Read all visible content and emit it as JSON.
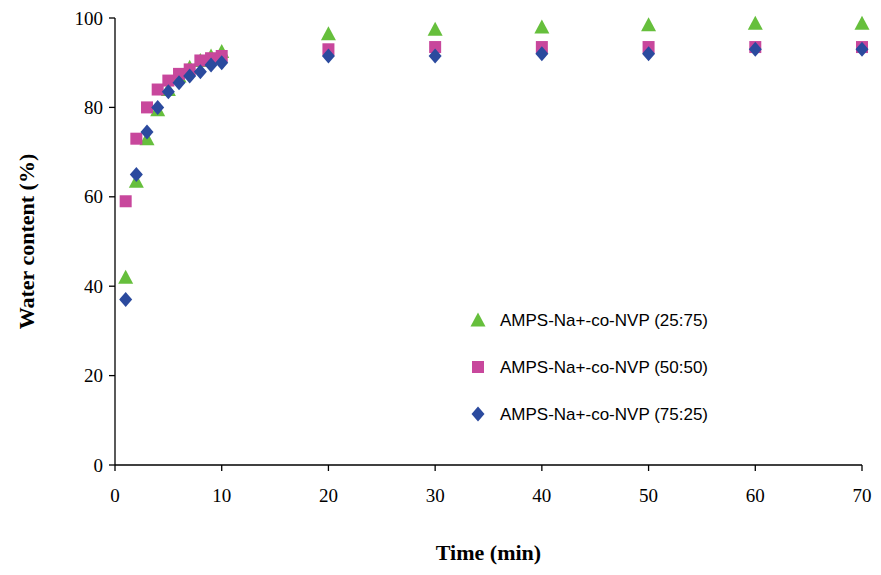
{
  "chart_data": {
    "type": "scatter",
    "x_label": "Time (min)",
    "y_label": "Water content (%)",
    "x": [
      1,
      2,
      3,
      4,
      5,
      6,
      7,
      8,
      9,
      10,
      20,
      30,
      40,
      50,
      60,
      70
    ],
    "series": [
      {
        "name": "AMPS-Na+-co-NVP (25:75)",
        "color": "#66bf3c",
        "marker": "triangle",
        "values": [
          42,
          63.5,
          73,
          79.5,
          84,
          87,
          89,
          90.5,
          91.5,
          92.5,
          96.5,
          97.5,
          98,
          98.5,
          98.8,
          98.8
        ]
      },
      {
        "name": "AMPS-Na+-co-NVP (50:50)",
        "color": "#c8479c",
        "marker": "square",
        "values": [
          59,
          73,
          80,
          84,
          86,
          87.5,
          88.5,
          90.5,
          91,
          91.5,
          93,
          93.5,
          93.5,
          93.5,
          93.5,
          93.5
        ]
      },
      {
        "name": "AMPS-Na+-co-NVP (75:25)",
        "color": "#2b4a9e",
        "marker": "diamond",
        "values": [
          37,
          65,
          74.5,
          80,
          83.5,
          85.5,
          87,
          88,
          89.5,
          90,
          91.5,
          91.5,
          92,
          92,
          93,
          93
        ]
      }
    ],
    "xlim": [
      0,
      70
    ],
    "xticks": [
      0,
      10,
      20,
      30,
      40,
      50,
      60,
      70
    ],
    "ylim": [
      0,
      100
    ],
    "yticks": [
      0,
      20,
      40,
      60,
      80,
      100
    ],
    "grid": false,
    "legend": "right"
  }
}
